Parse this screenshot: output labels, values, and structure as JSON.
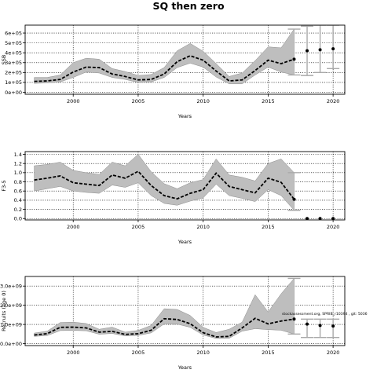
{
  "figure": {
    "title": "SQ then zero",
    "annotation": "stockassessment.org, SPRIB_r10394 , git: 5036"
  },
  "colors": {
    "band": "#bebebe",
    "line": "#000000",
    "projection": "#a9a9a9"
  },
  "chart_data": [
    {
      "type": "line",
      "name_id": "ssb",
      "ylabel": "SSB",
      "xlabel": "Years",
      "xlim": [
        1996.3,
        2020.9
      ],
      "ylim": [
        -20000,
        680000
      ],
      "xticks": [
        2000,
        2005,
        2010,
        2015,
        2020
      ],
      "xtick_labels": [
        "2000",
        "2005",
        "2010",
        "2015",
        "2020"
      ],
      "yticks": [
        0,
        100000,
        200000,
        300000,
        400000,
        500000,
        600000
      ],
      "ytick_labels": [
        "0e+00",
        "1e+05",
        "2e+05",
        "3e+05",
        "4e+05",
        "5e+05",
        "6e+05"
      ],
      "grid": true,
      "x": [
        1997,
        1998,
        1999,
        2000,
        2001,
        2002,
        2003,
        2004,
        2005,
        2006,
        2007,
        2008,
        2009,
        2010,
        2011,
        2012,
        2013,
        2014,
        2015,
        2016,
        2017
      ],
      "estimate": [
        110000,
        115000,
        130000,
        205000,
        255000,
        250000,
        185000,
        160000,
        125000,
        130000,
        185000,
        310000,
        370000,
        325000,
        215000,
        115000,
        125000,
        220000,
        325000,
        290000,
        335000
      ],
      "lower": [
        90000,
        95000,
        105000,
        150000,
        205000,
        195000,
        150000,
        130000,
        100000,
        105000,
        150000,
        250000,
        295000,
        255000,
        155000,
        85000,
        85000,
        175000,
        255000,
        205000,
        175000
      ],
      "upper": [
        150000,
        150000,
        175000,
        300000,
        345000,
        335000,
        240000,
        210000,
        170000,
        180000,
        250000,
        420000,
        495000,
        415000,
        290000,
        160000,
        195000,
        320000,
        460000,
        450000,
        640000
      ],
      "projection": {
        "x": [
          2018,
          2019,
          2020
        ],
        "median": [
          420000,
          430000,
          440000
        ],
        "lower": [
          170000,
          200000,
          240000
        ],
        "upper": [
          670000,
          680000,
          680000
        ]
      }
    },
    {
      "type": "line",
      "name_id": "fbar",
      "ylabel": "F3-5",
      "xlabel": "Years",
      "xlim": [
        1996.3,
        2020.9
      ],
      "ylim": [
        -0.03,
        1.46
      ],
      "xticks": [
        2000,
        2005,
        2010,
        2015,
        2020
      ],
      "xtick_labels": [
        "2000",
        "2005",
        "2010",
        "2015",
        "2020"
      ],
      "yticks": [
        0.0,
        0.2,
        0.4,
        0.6,
        0.8,
        1.0,
        1.2,
        1.4
      ],
      "ytick_labels": [
        "0.0",
        "0.2",
        "0.4",
        "0.6",
        "0.8",
        "1.0",
        "1.2",
        "1.4"
      ],
      "grid": true,
      "x": [
        1997,
        1998,
        1999,
        2000,
        2001,
        2002,
        2003,
        2004,
        2005,
        2006,
        2007,
        2008,
        2009,
        2010,
        2011,
        2012,
        2013,
        2014,
        2015,
        2016,
        2017
      ],
      "estimate": [
        0.84,
        0.88,
        0.93,
        0.78,
        0.75,
        0.72,
        0.95,
        0.88,
        1.03,
        0.72,
        0.5,
        0.43,
        0.55,
        0.63,
        0.99,
        0.7,
        0.63,
        0.56,
        0.88,
        0.79,
        0.42
      ],
      "lower": [
        0.6,
        0.65,
        0.7,
        0.6,
        0.57,
        0.55,
        0.73,
        0.68,
        0.78,
        0.5,
        0.33,
        0.29,
        0.38,
        0.45,
        0.75,
        0.5,
        0.44,
        0.37,
        0.63,
        0.5,
        0.18
      ],
      "upper": [
        1.15,
        1.18,
        1.23,
        1.05,
        1.0,
        0.96,
        1.23,
        1.15,
        1.4,
        1.02,
        0.76,
        0.65,
        0.78,
        0.85,
        1.3,
        0.95,
        0.9,
        0.82,
        1.2,
        1.3,
        1.0
      ],
      "projection": {
        "x": [
          2018,
          2019,
          2020
        ],
        "median": [
          0.0,
          0.0,
          0.0
        ],
        "lower": [
          0.0,
          0.0,
          0.0
        ],
        "upper": [
          0.0,
          0.0,
          0.0
        ]
      }
    },
    {
      "type": "line",
      "name_id": "recruits",
      "ylabel": "Recruits (age 0)",
      "xlabel": "Years",
      "xlim": [
        1996.3,
        2020.9
      ],
      "ylim": [
        -100000000,
        3500000000
      ],
      "xticks": [
        2000,
        2005,
        2010,
        2015,
        2020
      ],
      "xtick_labels": [
        "2000",
        "2005",
        "2010",
        "2015",
        "2020"
      ],
      "yticks": [
        0,
        1000000000,
        2000000000,
        3000000000
      ],
      "ytick_labels": [
        "0.0e+00",
        "1.0e+09",
        "2.0e+09",
        "3.0e+09"
      ],
      "grid": true,
      "x": [
        1997,
        1998,
        1999,
        2000,
        2001,
        2002,
        2003,
        2004,
        2005,
        2006,
        2007,
        2008,
        2009,
        2010,
        2011,
        2012,
        2013,
        2014,
        2015,
        2016,
        2017
      ],
      "estimate": [
        450000000,
        520000000,
        850000000,
        860000000,
        820000000,
        600000000,
        640000000,
        480000000,
        520000000,
        700000000,
        1300000000,
        1260000000,
        1040000000,
        570000000,
        350000000,
        380000000,
        820000000,
        1320000000,
        1030000000,
        1180000000,
        1280000000
      ],
      "lower": [
        380000000,
        420000000,
        680000000,
        690000000,
        670000000,
        490000000,
        530000000,
        400000000,
        430000000,
        560000000,
        1030000000,
        1020000000,
        850000000,
        450000000,
        270000000,
        280000000,
        650000000,
        780000000,
        730000000,
        700000000,
        500000000
      ],
      "upper": [
        550000000,
        650000000,
        1100000000,
        1120000000,
        1050000000,
        750000000,
        860000000,
        600000000,
        690000000,
        950000000,
        1820000000,
        1780000000,
        1470000000,
        850000000,
        580000000,
        750000000,
        1120000000,
        2550000000,
        1650000000,
        2600000000,
        3400000000
      ],
      "projection": {
        "x": [
          2018,
          2019,
          2020
        ],
        "median": [
          1020000000,
          950000000,
          920000000
        ],
        "lower": [
          320000000,
          320000000,
          320000000
        ],
        "upper": [
          1280000000,
          1280000000,
          1280000000
        ]
      }
    }
  ]
}
